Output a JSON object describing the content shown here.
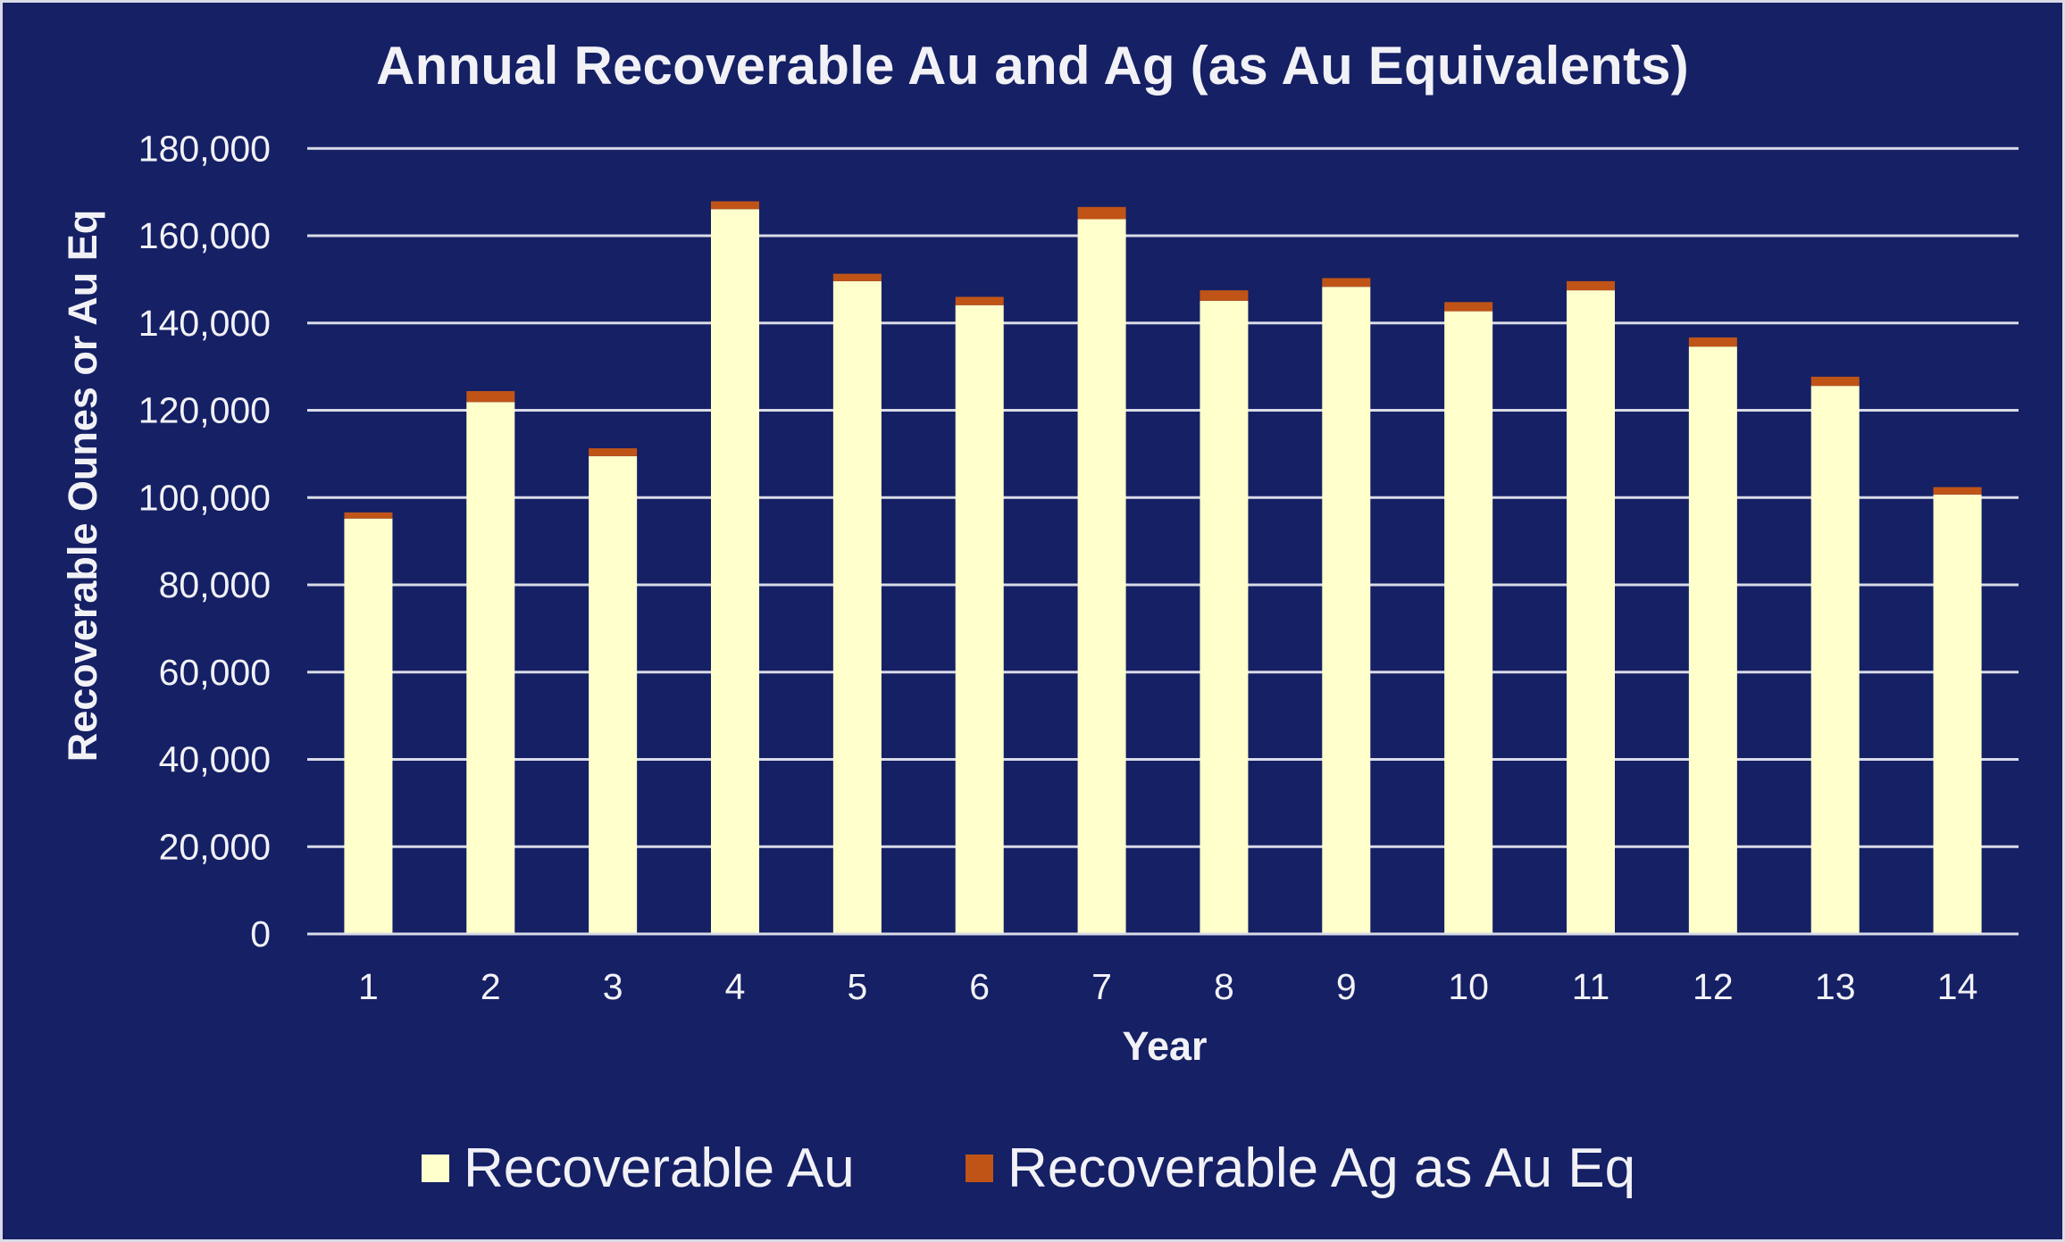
{
  "colors": {
    "background": "#152065",
    "gridline": "#d9dbe8",
    "text": "#f2f2f6",
    "au": "#FFFFCC",
    "ag": "#C05417"
  },
  "chart_data": {
    "type": "bar",
    "stacked": true,
    "title": "Annual Recoverable Au and Ag (as Au Equivalents)",
    "xlabel": "Year",
    "ylabel": "Recoverable Ounes or Au Eq",
    "categories": [
      "1",
      "2",
      "3",
      "4",
      "5",
      "6",
      "7",
      "8",
      "9",
      "10",
      "11",
      "12",
      "13",
      "14"
    ],
    "series": [
      {
        "name": "Recoverable Au",
        "color": "#FFFFCC",
        "values": [
          95200,
          121900,
          109500,
          166100,
          149600,
          144100,
          163800,
          145100,
          148300,
          142700,
          147500,
          134600,
          125600,
          100700
        ]
      },
      {
        "name": "Recoverable Ag as Au Eq",
        "color": "#C05417",
        "values": [
          1400,
          2500,
          1800,
          1800,
          1700,
          1900,
          2800,
          2400,
          2000,
          2100,
          2100,
          2100,
          2100,
          1700
        ]
      }
    ],
    "ylim": [
      0,
      180000
    ],
    "yticks": [
      0,
      20000,
      40000,
      60000,
      80000,
      100000,
      120000,
      140000,
      160000,
      180000
    ],
    "ytick_labels": [
      "0",
      "20,000",
      "40,000",
      "60,000",
      "80,000",
      "100,000",
      "120,000",
      "140,000",
      "160,000",
      "180,000"
    ],
    "grid": true,
    "legend_position": "bottom"
  },
  "legend": [
    {
      "label": "Recoverable Au",
      "color": "#FFFFCC"
    },
    {
      "label": "Recoverable Ag as Au Eq",
      "color": "#C05417"
    }
  ]
}
